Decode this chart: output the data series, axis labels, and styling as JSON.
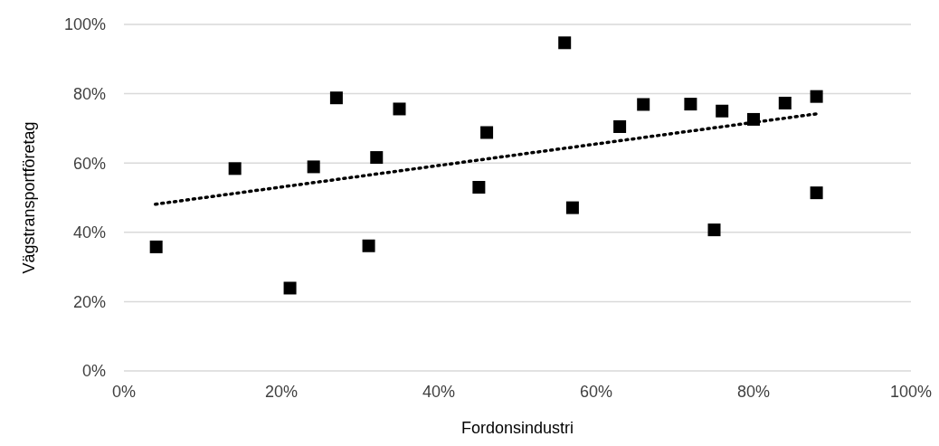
{
  "chart_data": {
    "type": "scatter",
    "xlabel": "Fordonsindustri",
    "ylabel": "Vägstransportföretag",
    "xlim": [
      0,
      100
    ],
    "xticks": [
      {
        "value": 0,
        "label": "0%"
      },
      {
        "value": 20,
        "label": "20%"
      },
      {
        "value": 40,
        "label": "40%"
      },
      {
        "value": 60,
        "label": "60%"
      },
      {
        "value": 80,
        "label": "80%"
      },
      {
        "value": 100,
        "label": "100%"
      }
    ],
    "ylim": [
      0,
      100
    ],
    "yticks": [
      {
        "value": 0,
        "label": "0%"
      },
      {
        "value": 20,
        "label": "20%"
      },
      {
        "value": 40,
        "label": "40%"
      },
      {
        "value": 60,
        "label": "60%"
      },
      {
        "value": 80,
        "label": "80%"
      },
      {
        "value": 100,
        "label": "100%"
      }
    ],
    "grid": "y",
    "marker": "square",
    "series": [
      {
        "color": "#000000",
        "x": [
          4.1,
          14.1,
          21.1,
          24.1,
          27.0,
          31.1,
          32.1,
          35.0,
          45.1,
          46.1,
          56.0,
          57.0,
          63.0,
          66.0,
          72.0,
          76.0,
          75.0,
          80.0,
          84.0,
          88.0,
          88.0
        ],
        "values": [
          35.8,
          58.4,
          23.9,
          58.9,
          78.8,
          36.1,
          61.6,
          75.6,
          53.0,
          68.8,
          94.7,
          47.1,
          70.5,
          76.9,
          77.0,
          75.0,
          40.7,
          72.6,
          77.3,
          79.2,
          51.4
        ]
      },
      {
        "type": "line",
        "color": "#000000",
        "line_style": "dotted",
        "marker": "none",
        "x": [
          4.0,
          88.0
        ],
        "values": [
          48.1,
          74.2
        ]
      }
    ]
  }
}
